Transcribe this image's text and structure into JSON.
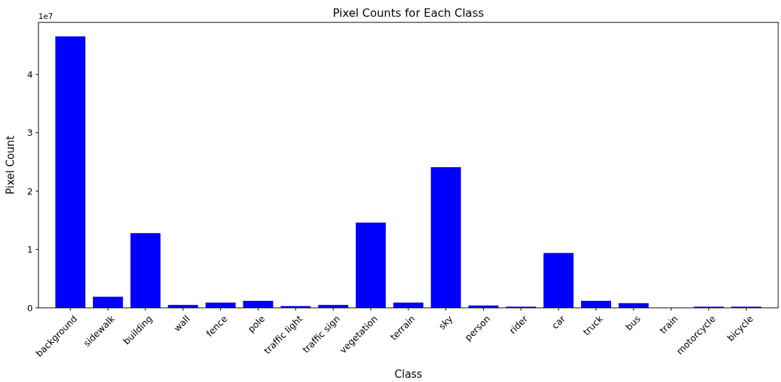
{
  "chart_data": {
    "type": "bar",
    "title": "Pixel Counts for Each Class",
    "xlabel": "Class",
    "ylabel": "Pixel Count",
    "categories": [
      "background",
      "sidewalk",
      "building",
      "wall",
      "fence",
      "pole",
      "traffic light",
      "traffic sign",
      "vegetation",
      "terrain",
      "sky",
      "person",
      "rider",
      "car",
      "truck",
      "bus",
      "train",
      "motorcycle",
      "bicycle"
    ],
    "values": [
      4.65,
      0.19,
      1.28,
      0.05,
      0.09,
      0.12,
      0.03,
      0.05,
      1.46,
      0.09,
      2.41,
      0.04,
      0.02,
      0.94,
      0.12,
      0.08,
      0,
      0.02,
      0.02
    ],
    "color": "#0000ff",
    "ylim": [
      0,
      4.89
    ],
    "yticks": [
      0,
      1,
      2,
      3,
      4
    ],
    "annotations": [
      "1e7"
    ],
    "grid": false
  }
}
